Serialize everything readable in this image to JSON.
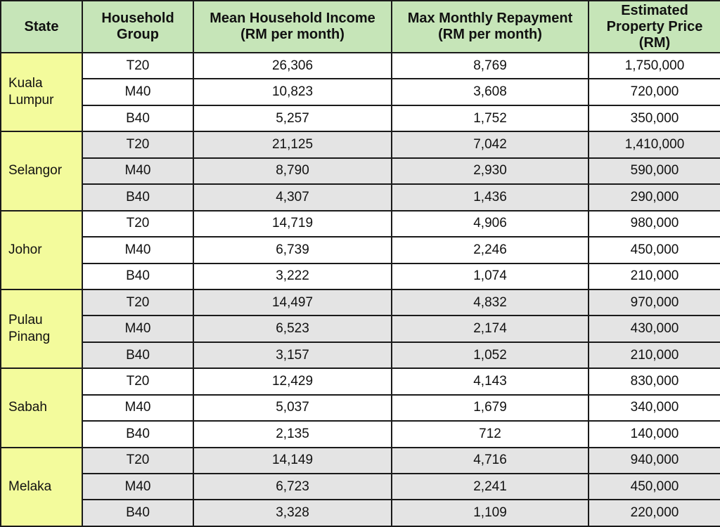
{
  "table": {
    "headers": [
      {
        "lines": [
          "State"
        ]
      },
      {
        "lines": [
          "Household",
          "Group"
        ]
      },
      {
        "lines": [
          "Mean Household Income",
          "(RM per month)"
        ]
      },
      {
        "lines": [
          "Max Monthly Repayment",
          "(RM per month)"
        ]
      },
      {
        "lines": [
          "Estimated",
          "Property Price",
          "(RM)"
        ]
      }
    ],
    "colors": {
      "header_bg": "#c6e5b8",
      "state_bg": "#f3fb9c",
      "shaded_row_bg": "#e4e4e4",
      "plain_row_bg": "#ffffff",
      "border": "#1a1a1a"
    },
    "states": [
      {
        "name_lines": [
          "Kuala",
          "Lumpur"
        ],
        "shaded": false,
        "rows": [
          {
            "group": "T20",
            "income": "26,306",
            "repayment": "8,769",
            "price": "1,750,000"
          },
          {
            "group": "M40",
            "income": "10,823",
            "repayment": "3,608",
            "price": "720,000"
          },
          {
            "group": "B40",
            "income": "5,257",
            "repayment": "1,752",
            "price": "350,000"
          }
        ]
      },
      {
        "name_lines": [
          "Selangor"
        ],
        "shaded": true,
        "rows": [
          {
            "group": "T20",
            "income": "21,125",
            "repayment": "7,042",
            "price": "1,410,000"
          },
          {
            "group": "M40",
            "income": "8,790",
            "repayment": "2,930",
            "price": "590,000"
          },
          {
            "group": "B40",
            "income": "4,307",
            "repayment": "1,436",
            "price": "290,000"
          }
        ]
      },
      {
        "name_lines": [
          "Johor"
        ],
        "shaded": false,
        "rows": [
          {
            "group": "T20",
            "income": "14,719",
            "repayment": "4,906",
            "price": "980,000"
          },
          {
            "group": "M40",
            "income": "6,739",
            "repayment": "2,246",
            "price": "450,000"
          },
          {
            "group": "B40",
            "income": "3,222",
            "repayment": "1,074",
            "price": "210,000"
          }
        ]
      },
      {
        "name_lines": [
          "Pulau",
          "Pinang"
        ],
        "shaded": true,
        "rows": [
          {
            "group": "T20",
            "income": "14,497",
            "repayment": "4,832",
            "price": "970,000"
          },
          {
            "group": "M40",
            "income": "6,523",
            "repayment": "2,174",
            "price": "430,000"
          },
          {
            "group": "B40",
            "income": "3,157",
            "repayment": "1,052",
            "price": "210,000"
          }
        ]
      },
      {
        "name_lines": [
          "Sabah"
        ],
        "shaded": false,
        "rows": [
          {
            "group": "T20",
            "income": "12,429",
            "repayment": "4,143",
            "price": "830,000"
          },
          {
            "group": "M40",
            "income": "5,037",
            "repayment": "1,679",
            "price": "340,000"
          },
          {
            "group": "B40",
            "income": "2,135",
            "repayment": "712",
            "price": "140,000"
          }
        ]
      },
      {
        "name_lines": [
          "Melaka"
        ],
        "shaded": true,
        "rows": [
          {
            "group": "T20",
            "income": "14,149",
            "repayment": "4,716",
            "price": "940,000"
          },
          {
            "group": "M40",
            "income": "6,723",
            "repayment": "2,241",
            "price": "450,000"
          },
          {
            "group": "B40",
            "income": "3,328",
            "repayment": "1,109",
            "price": "220,000"
          }
        ]
      }
    ]
  }
}
